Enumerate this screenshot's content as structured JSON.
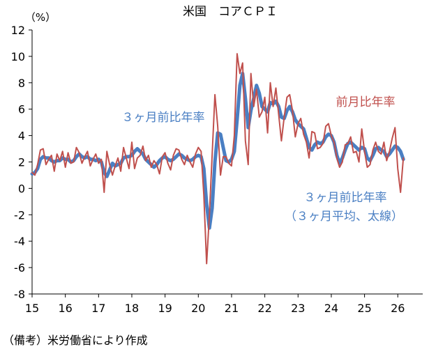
{
  "chart_data": {
    "type": "line",
    "title": "米国　コアＣＰＩ",
    "unit_label": "（%）",
    "source_note": "（備考）米労働省により作成",
    "ylim": [
      -8,
      12
    ],
    "yticks": [
      "12",
      "10",
      "8",
      "6",
      "4",
      "2",
      "0",
      "-2",
      "-4",
      "-6",
      "-8"
    ],
    "xlim": [
      2015.0,
      2026.75
    ],
    "xticks": [
      "15",
      "16",
      "17",
      "18",
      "19",
      "20",
      "21",
      "22",
      "23",
      "24",
      "25",
      "26"
    ],
    "grid": false,
    "annotations": {
      "blue_line1": "３ヶ月前比年率",
      "red_label": "前月比年率",
      "blue_label2_line1": "３ヶ月前比年率",
      "blue_label2_line2": "（３ヶ月平均、太線）"
    },
    "series": [
      {
        "name": "前月比年率",
        "color": "#c0504d",
        "start": 2015.0,
        "step": 0.08333,
        "values": [
          1.2,
          1.0,
          1.8,
          2.9,
          3.0,
          1.8,
          2.2,
          2.5,
          1.3,
          2.6,
          2.1,
          2.8,
          1.6,
          2.7,
          1.9,
          2.0,
          3.1,
          2.7,
          1.9,
          2.4,
          2.8,
          1.7,
          2.2,
          2.6,
          1.9,
          2.2,
          -0.3,
          2.8,
          1.8,
          1.0,
          1.7,
          2.3,
          1.3,
          3.1,
          2.3,
          1.5,
          3.5,
          1.5,
          2.3,
          2.5,
          3.2,
          2.1,
          2.5,
          1.6,
          2.1,
          1.8,
          1.1,
          2.4,
          2.7,
          1.9,
          1.4,
          2.5,
          3.0,
          2.9,
          2.2,
          1.8,
          2.5,
          2.0,
          1.6,
          2.6,
          3.1,
          2.8,
          -0.5,
          -5.7,
          -2.0,
          2.5,
          7.1,
          4.7,
          1.0,
          2.4,
          2.4,
          1.9,
          1.7,
          4.0,
          10.2,
          8.7,
          9.5,
          3.6,
          1.8,
          8.7,
          6.2,
          7.5,
          5.4,
          5.8,
          6.9,
          4.2,
          8.0,
          6.2,
          7.6,
          5.6,
          3.6,
          5.4,
          6.9,
          7.1,
          5.9,
          3.9,
          4.9,
          5.3,
          4.1,
          3.5,
          2.3,
          4.3,
          4.2,
          3.0,
          3.1,
          3.4,
          4.7,
          4.9,
          4.0,
          3.5,
          2.3,
          1.6,
          2.0,
          3.3,
          3.4,
          3.9,
          2.7,
          2.8,
          2.0,
          4.5,
          2.8,
          1.6,
          1.8,
          2.9,
          3.5,
          2.8,
          2.6,
          3.5,
          2.1,
          2.8,
          3.8,
          4.6,
          1.5,
          -0.3,
          2.3
        ]
      },
      {
        "name": "３ヶ月前比年率（３ヶ月平均、太線）",
        "color": "#4a7fc3",
        "start": 2015.0,
        "step": 0.08333,
        "values": [
          1.1,
          1.2,
          1.5,
          2.2,
          2.4,
          2.3,
          2.3,
          2.1,
          2.0,
          2.1,
          2.1,
          2.3,
          2.2,
          2.2,
          2.0,
          2.1,
          2.4,
          2.6,
          2.4,
          2.3,
          2.4,
          2.2,
          2.2,
          2.1,
          2.2,
          2.0,
          1.2,
          0.9,
          1.4,
          1.9,
          1.7,
          1.8,
          1.9,
          2.3,
          2.4,
          2.4,
          2.5,
          2.8,
          3.0,
          2.8,
          2.6,
          2.2,
          2.0,
          1.8,
          1.6,
          1.8,
          2.1,
          2.3,
          2.4,
          2.2,
          2.1,
          2.2,
          2.4,
          2.6,
          2.5,
          2.3,
          2.2,
          2.1,
          2.2,
          2.4,
          2.5,
          2.4,
          1.5,
          -1.2,
          -3.0,
          -1.5,
          2.0,
          4.2,
          4.1,
          3.1,
          2.1,
          2.0,
          2.2,
          2.8,
          5.2,
          7.8,
          8.7,
          6.8,
          4.6,
          5.9,
          6.8,
          7.8,
          7.2,
          6.2,
          6.0,
          5.8,
          6.5,
          6.4,
          6.6,
          6.2,
          5.4,
          5.3,
          5.9,
          6.2,
          5.8,
          5.2,
          4.9,
          4.7,
          4.5,
          3.8,
          3.1,
          2.9,
          3.3,
          3.5,
          3.4,
          3.5,
          3.9,
          4.1,
          4.0,
          3.5,
          2.5,
          1.9,
          2.3,
          2.9,
          3.4,
          3.5,
          3.3,
          3.1,
          2.9,
          3.1,
          3.0,
          2.3,
          2.1,
          2.5,
          3.0,
          3.1,
          2.9,
          2.8,
          2.4,
          2.6,
          2.9,
          3.2,
          3.1,
          2.8,
          2.2
        ]
      }
    ]
  }
}
